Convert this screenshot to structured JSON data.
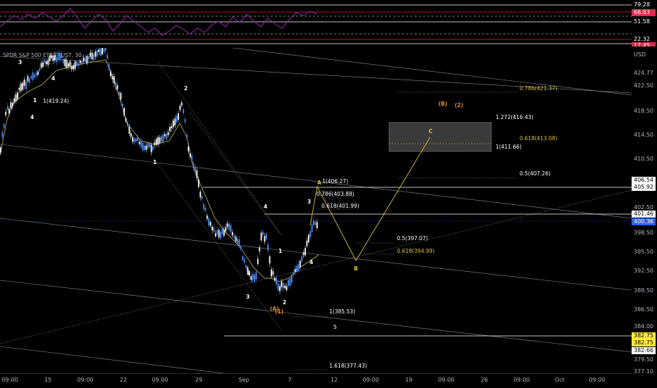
{
  "legend": "SPDR S&P 500 ETF TRUST, 30, ...",
  "currency": "USD",
  "rsi_axis": [
    "79.28",
    "66.63",
    "51.58",
    "22.32",
    "17.45"
  ],
  "price_axis": [
    "424.77",
    "422.50",
    "418.50",
    "414.50",
    "410.50",
    "406.54",
    "405.92",
    "402.50",
    "401.46",
    "400.36",
    "398.50",
    "395.50",
    "392.50",
    "389.50",
    "386.50",
    "384.00",
    "382.75",
    "382.75",
    "382.66",
    "379.50",
    "377.10"
  ],
  "x_axis": [
    "09:00",
    "15",
    "09:00",
    "22",
    "09:00",
    "29",
    "Sep",
    "7",
    "12",
    "09:00",
    "19",
    "09:00",
    "26",
    "09:00",
    "Oct",
    "09:00"
  ],
  "fib_labels": [
    "0.786(421.37)",
    "1.272(416.43)",
    "0.618(413.08)",
    "1(411.66)",
    "0.5(407.26)",
    "1(406.27)",
    "0.786(403.88)",
    "0.618(401.99)",
    "0.5(397.07)",
    "0.618(394.99)",
    "1(385.53)",
    "5",
    "1.618(377.43)",
    "1(419.24)"
  ],
  "waves": [
    "3",
    "4",
    "2",
    "4",
    "1",
    "2",
    "4",
    "3",
    "1",
    "2",
    "3",
    "4",
    "1",
    "A",
    "B",
    "C",
    "(B)",
    "(2)",
    "(A)",
    "(1)"
  ],
  "colors": {
    "rsi": "#9c27b0",
    "up": "#4f8ff7",
    "yellow": "#d8c43a",
    "orange": "#e88a1a",
    "tag_red": "#e0294a",
    "tag_blue": "#2962ff",
    "tag_yellow": "#ffeb3b"
  }
}
